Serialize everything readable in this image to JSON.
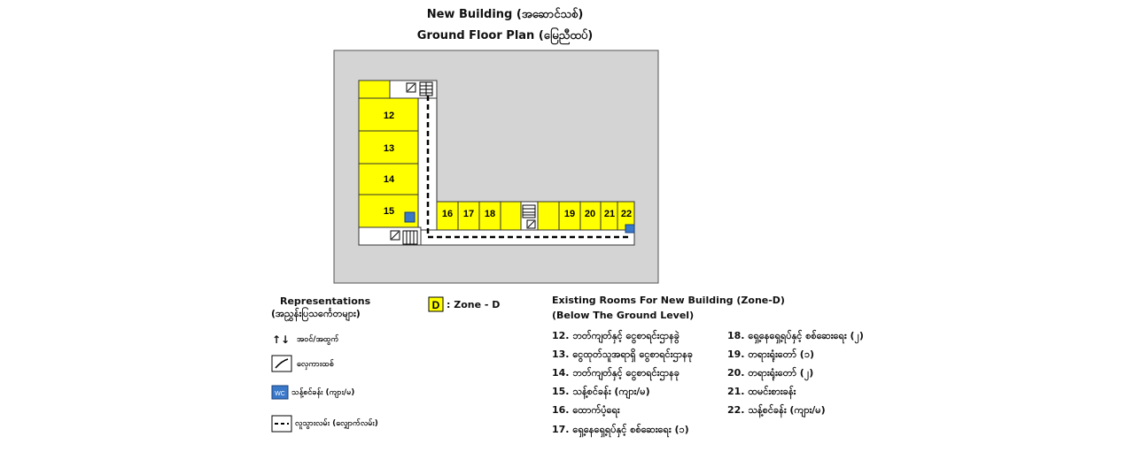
{
  "title_line1": "New Building (အဆောင်သစ်)",
  "title_line2": "Ground Floor Plan (မြေညီထပ်)",
  "rooms": {
    "r12": "12",
    "r13": "13",
    "r14": "14",
    "r15": "15",
    "r16": "16",
    "r17": "17",
    "r18": "18",
    "r19": "19",
    "r20": "20",
    "r21": "21",
    "r22": "22"
  },
  "zone_badge": "D",
  "zone_text": ": Zone - D",
  "legend": {
    "heading1": "Representations",
    "heading2": "(အညွှန်းပြသင်္ကေတများ)",
    "arrows_glyph": "↑↓",
    "arrows_label": "အဝင်/အထွက်",
    "stairs_label": "လှေကားထစ်",
    "toilet_icon_text": "WC",
    "toilet_label": "သန့်စင်ခန်း (ကျား/မ)",
    "path_label": "လူသွားလမ်း (လျှောက်လမ်း)"
  },
  "existing": {
    "heading1": "Existing Rooms For New Building (Zone-D)",
    "heading2": "(Below The Ground Level)",
    "col1": [
      "12. ဘတ်ကျတ်နှင့် ငွေစာရင်းဌာနခွဲ",
      "13. ငွေထုတ်သူအရာရှိ ငွေစာရင်းဌာနခု",
      "14. ဘတ်ကျတ်နှင့် ငွေစာရင်းဌာနခု",
      "15. သန့်စင်ခန်း (ကျား/မ)",
      "16. ထောက်ပံ့ရေး",
      "17. ရှေ့နေရှေ့ရပ်နှင့် စစ်ဆေးရေး (၁)"
    ],
    "col2": [
      "18. ရှေ့နေရှေ့ရပ်နှင့် စစ်ဆေးရေး (၂)",
      "19. တရားရုံးတော် (၁)",
      "20. တရားရုံးတော် (၂)",
      "21. ထမင်းစားခန်း",
      "22. သန့်စင်ခန်း (ကျား/မ)"
    ]
  },
  "colors": {
    "room": "#ffff00",
    "ground": "#d4d4d4",
    "toilet": "#3a78c9"
  }
}
